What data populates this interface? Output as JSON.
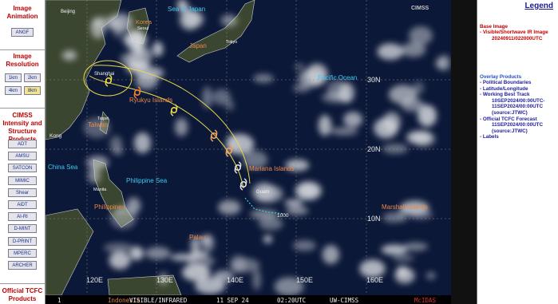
{
  "sidebar": {
    "sections": [
      {
        "title": "Image Animation",
        "buttons": [
          "ANGF"
        ]
      },
      {
        "title": "Image Resolution",
        "buttons": [
          "1km",
          "2km",
          "4km",
          "8km"
        ]
      },
      {
        "title": "CIMSS Intensity and Structure Products",
        "buttons": [
          "ADT",
          "AMSU",
          "SATCON",
          "MIMIC",
          "Shear",
          "AiDT",
          "AI-RI",
          "D-MINT",
          "D-PRINT",
          "MPERC",
          "ARCHER"
        ]
      },
      {
        "title": "Official TCFC Products",
        "buttons": []
      }
    ]
  },
  "map": {
    "logo": "CIMSS",
    "labels": [
      "Beijing",
      "Korea",
      "Seoul",
      "Sea of Japan",
      "Japan",
      "Tokyo",
      "Shanghai",
      "Ryukyu Islands",
      "Taipei",
      "Taiwan",
      "Kong",
      "China Sea",
      "Philippine Sea",
      "Manila",
      "Philippines",
      "Pacific Ocean",
      "Mariana Islands",
      "Guam",
      "Marshall Islands",
      "Palau",
      "1000"
    ],
    "grid_labels": [
      "30N",
      "20N",
      "10N",
      "120E",
      "130E",
      "140E",
      "150E",
      "160E"
    ],
    "status_bar": [
      "1",
      "Indonesia",
      "VISIBLE/INFRARED",
      "11 SEP 24",
      "02:20UTC",
      "UW-CIMSS",
      "McIDAS"
    ]
  },
  "legend": {
    "title": "Legend",
    "base_image": {
      "heading": "Base Image",
      "lines": [
        "- Visible/Shortwave IR Image",
        "20240911/022000UTC"
      ]
    },
    "overlay_products": {
      "heading": "Overlay Products",
      "lines": [
        "- Political Boundaries",
        "- Latitude/Longitude",
        "- Working Best Track",
        "10SEP2024/00:00UTC-",
        "11SEP2024/00:00UTC",
        "(source:JTWC)",
        "- Official TCFC Forecast",
        "11SEP2024/00:00UTC",
        "(source:JTWC)",
        "- Labels"
      ]
    }
  }
}
